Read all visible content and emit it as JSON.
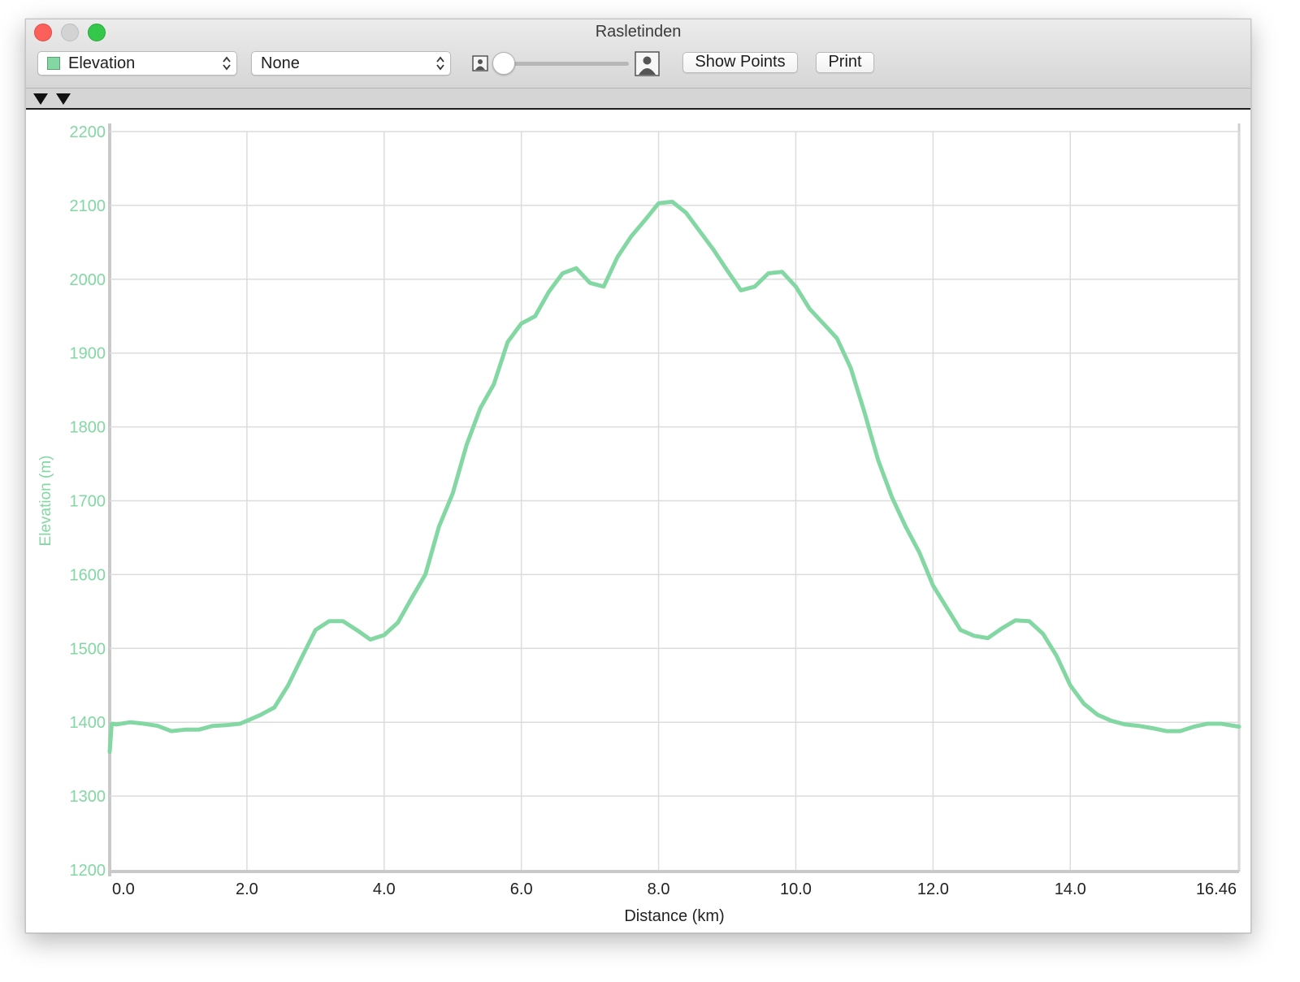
{
  "window": {
    "title": "Rasletinden"
  },
  "toolbar": {
    "primary_select": {
      "value": "Elevation",
      "swatch_color": "#82d7a2"
    },
    "secondary_select": {
      "value": "None"
    },
    "show_points_label": "Show Points",
    "print_label": "Print",
    "slider": {
      "min_icon": "person-small-icon",
      "max_icon": "person-large-icon",
      "value": 0
    }
  },
  "marker_bar": {
    "markers": [
      "marker-icon",
      "marker-icon"
    ]
  },
  "chart_data": {
    "type": "line",
    "xlabel": "Distance (km)",
    "ylabel": "Elevation (m)",
    "xlim": [
      0,
      16.46
    ],
    "ylim": [
      1200,
      2200
    ],
    "x_ticks": [
      "0.0",
      "2.0",
      "4.0",
      "6.0",
      "8.0",
      "10.0",
      "12.0",
      "14.0",
      "16.46"
    ],
    "x_tick_values": [
      0,
      2,
      4,
      6,
      8,
      10,
      12,
      14,
      16.46
    ],
    "y_ticks": [
      "1200",
      "1300",
      "1400",
      "1500",
      "1600",
      "1700",
      "1800",
      "1900",
      "2000",
      "2100",
      "2200"
    ],
    "y_tick_values": [
      1200,
      1300,
      1400,
      1500,
      1600,
      1700,
      1800,
      1900,
      2000,
      2100,
      2200
    ],
    "grid": true,
    "line_color": "#82d7a2",
    "axis_label_color": "#82d7a2",
    "series": [
      {
        "x": [
          0.0,
          0.03,
          0.1,
          0.3,
          0.5,
          0.7,
          0.9,
          1.1,
          1.3,
          1.5,
          1.7,
          1.9,
          2.0,
          2.2,
          2.4,
          2.6,
          2.8,
          3.0,
          3.2,
          3.4,
          3.6,
          3.8,
          4.0,
          4.2,
          4.4,
          4.6,
          4.8,
          5.0,
          5.2,
          5.4,
          5.6,
          5.8,
          6.0,
          6.2,
          6.4,
          6.6,
          6.8,
          7.0,
          7.2,
          7.4,
          7.6,
          7.8,
          8.0,
          8.2,
          8.4,
          8.6,
          8.8,
          9.0,
          9.2,
          9.4,
          9.6,
          9.8,
          10.0,
          10.2,
          10.4,
          10.6,
          10.8,
          11.0,
          11.2,
          11.4,
          11.6,
          11.8,
          12.0,
          12.2,
          12.4,
          12.6,
          12.8,
          13.0,
          13.2,
          13.4,
          13.6,
          13.8,
          14.0,
          14.2,
          14.4,
          14.6,
          14.8,
          15.0,
          15.2,
          15.4,
          15.6,
          15.8,
          16.0,
          16.2,
          16.46
        ],
        "y": [
          1360,
          1398,
          1397,
          1400,
          1398,
          1395,
          1388,
          1390,
          1390,
          1395,
          1396,
          1398,
          1402,
          1410,
          1420,
          1450,
          1488,
          1525,
          1537,
          1537,
          1525,
          1512,
          1518,
          1535,
          1568,
          1600,
          1665,
          1710,
          1775,
          1825,
          1858,
          1915,
          1940,
          1950,
          1983,
          2008,
          2015,
          1995,
          1990,
          2030,
          2058,
          2080,
          2103,
          2105,
          2090,
          2065,
          2040,
          2012,
          1985,
          1990,
          2008,
          2010,
          1990,
          1960,
          1940,
          1920,
          1880,
          1820,
          1755,
          1705,
          1665,
          1630,
          1585,
          1555,
          1525,
          1517,
          1514,
          1527,
          1538,
          1537,
          1520,
          1490,
          1450,
          1425,
          1410,
          1402,
          1397,
          1395,
          1392,
          1388,
          1388,
          1394,
          1398,
          1398,
          1394
        ]
      }
    ]
  }
}
